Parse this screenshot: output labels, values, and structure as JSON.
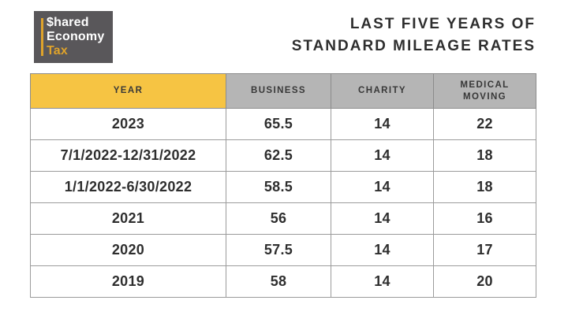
{
  "logo": {
    "line1": "$hared",
    "line2": "Economy",
    "line3": "Tax"
  },
  "title": {
    "line1": "LAST FIVE YEARS OF",
    "line2": "STANDARD MILEAGE RATES"
  },
  "table": {
    "display_headers": [
      "YEAR",
      "BUSINESS",
      "CHARITY",
      "MEDICAL\nMOVING"
    ]
  },
  "chart_data": {
    "type": "table",
    "title": "LAST FIVE YEARS OF STANDARD MILEAGE RATES",
    "columns": [
      "YEAR",
      "BUSINESS",
      "CHARITY",
      "MEDICAL MOVING"
    ],
    "rows": [
      [
        "2023",
        "65.5",
        "14",
        "22"
      ],
      [
        "7/1/2022-12/31/2022",
        "62.5",
        "14",
        "18"
      ],
      [
        "1/1/2022-6/30/2022",
        "58.5",
        "14",
        "18"
      ],
      [
        "2021",
        "56",
        "14",
        "16"
      ],
      [
        "2020",
        "57.5",
        "14",
        "17"
      ],
      [
        "2019",
        "58",
        "14",
        "20"
      ]
    ]
  },
  "colors": {
    "header_year_bg": "#F6C443",
    "header_gray_bg": "#B5B5B5",
    "logo_bg": "#59575A",
    "logo_accent": "#DFA32B",
    "text_dark": "#2E2E2E",
    "table_border": "#9B9B9B"
  }
}
